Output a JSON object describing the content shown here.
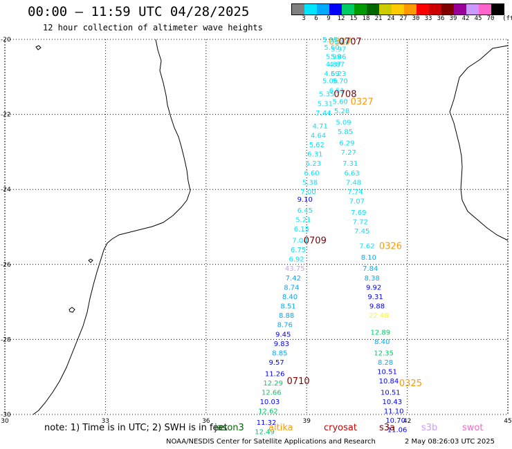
{
  "header": {
    "title": "00:00 – 11:59 UTC 04/28/2025",
    "subtitle": "12 hour collection of altimeter wave heights"
  },
  "colorbar": {
    "unit": "(ft)",
    "colors": [
      "#808080",
      "#00e5ff",
      "#00aaff",
      "#0000ff",
      "#00cc66",
      "#009900",
      "#006600",
      "#cccc00",
      "#ffcc00",
      "#ff9900",
      "#ff0000",
      "#cc0000",
      "#800000",
      "#990099",
      "#cc99ff",
      "#ff66cc",
      "#000000"
    ],
    "labels": [
      "3",
      "6",
      "9",
      "12",
      "15",
      "18",
      "21",
      "24",
      "27",
      "30",
      "33",
      "36",
      "39",
      "42",
      "45",
      "70"
    ]
  },
  "axes": {
    "lon_ticks": [
      "30",
      "33",
      "36",
      "39",
      "42",
      "45"
    ],
    "lat_ticks": [
      "-20",
      "-22",
      "-24",
      "-26",
      "-28",
      "-30"
    ]
  },
  "observations": [
    {
      "v": "5.95",
      "lon": 39.7,
      "lat": -20.0,
      "c": "#00e5ff"
    },
    {
      "v": "5.84",
      "lon": 40.05,
      "lat": -20.05,
      "c": "#00e5ff"
    },
    {
      "v": "5.60",
      "lon": 39.75,
      "lat": -20.2,
      "c": "#00e5ff"
    },
    {
      "v": "5.97",
      "lon": 39.95,
      "lat": -20.25,
      "c": "#00e5ff"
    },
    {
      "v": "5.99",
      "lon": 39.8,
      "lat": -20.45,
      "c": "#00e5ff"
    },
    {
      "v": "5.86",
      "lon": 39.95,
      "lat": -20.45,
      "c": "#00e5ff"
    },
    {
      "v": "4.87",
      "lon": 39.8,
      "lat": -20.65,
      "c": "#00e5ff"
    },
    {
      "v": "4.87",
      "lon": 39.9,
      "lat": -20.65,
      "c": "#00e5ff"
    },
    {
      "v": "4.69",
      "lon": 39.75,
      "lat": -20.9,
      "c": "#00e5ff"
    },
    {
      "v": "5.23",
      "lon": 39.95,
      "lat": -20.9,
      "c": "#00e5ff"
    },
    {
      "v": "5.06",
      "lon": 39.7,
      "lat": -21.1,
      "c": "#00e5ff"
    },
    {
      "v": "5.70",
      "lon": 40.0,
      "lat": -21.1,
      "c": "#00e5ff"
    },
    {
      "v": "6.51",
      "lon": 39.9,
      "lat": -21.35,
      "c": "#00e5ff"
    },
    {
      "v": "5.35",
      "lon": 39.6,
      "lat": -21.45,
      "c": "#00e5ff"
    },
    {
      "v": "5.31",
      "lon": 39.55,
      "lat": -21.7,
      "c": "#00e5ff"
    },
    {
      "v": "5.60",
      "lon": 40.0,
      "lat": -21.65,
      "c": "#00e5ff"
    },
    {
      "v": "7.44",
      "lon": 39.5,
      "lat": -21.95,
      "c": "#00e5ff"
    },
    {
      "v": "5.28",
      "lon": 40.05,
      "lat": -21.9,
      "c": "#00e5ff"
    },
    {
      "v": "4.71",
      "lon": 39.4,
      "lat": -22.3,
      "c": "#00e5ff"
    },
    {
      "v": "5.09",
      "lon": 40.1,
      "lat": -22.2,
      "c": "#00e5ff"
    },
    {
      "v": "4.64",
      "lon": 39.35,
      "lat": -22.55,
      "c": "#00e5ff"
    },
    {
      "v": "5.85",
      "lon": 40.15,
      "lat": -22.45,
      "c": "#00e5ff"
    },
    {
      "v": "5.62",
      "lon": 39.3,
      "lat": -22.8,
      "c": "#00e5ff"
    },
    {
      "v": "6.29",
      "lon": 40.2,
      "lat": -22.75,
      "c": "#00e5ff"
    },
    {
      "v": "6.31",
      "lon": 39.25,
      "lat": -23.05,
      "c": "#00e5ff"
    },
    {
      "v": "7.27",
      "lon": 40.25,
      "lat": -23.0,
      "c": "#00e5ff"
    },
    {
      "v": "5.23",
      "lon": 39.2,
      "lat": -23.3,
      "c": "#00e5ff"
    },
    {
      "v": "7.31",
      "lon": 40.3,
      "lat": -23.3,
      "c": "#00e5ff"
    },
    {
      "v": "6.60",
      "lon": 39.15,
      "lat": -23.55,
      "c": "#00e5ff"
    },
    {
      "v": "6.63",
      "lon": 40.35,
      "lat": -23.55,
      "c": "#00e5ff"
    },
    {
      "v": "5.38",
      "lon": 39.1,
      "lat": -23.8,
      "c": "#00e5ff"
    },
    {
      "v": "7.48",
      "lon": 40.4,
      "lat": -23.8,
      "c": "#00e5ff"
    },
    {
      "v": "7.00",
      "lon": 39.05,
      "lat": -24.05,
      "c": "#00e5ff"
    },
    {
      "v": "7.74",
      "lon": 40.45,
      "lat": -24.05,
      "c": "#00e5ff"
    },
    {
      "v": "9.10",
      "lon": 38.95,
      "lat": -24.25,
      "c": "#0000ff"
    },
    {
      "v": "7.07",
      "lon": 40.5,
      "lat": -24.3,
      "c": "#00e5ff"
    },
    {
      "v": "6.45",
      "lon": 38.95,
      "lat": -24.55,
      "c": "#00e5ff"
    },
    {
      "v": "7.69",
      "lon": 40.55,
      "lat": -24.6,
      "c": "#00e5ff"
    },
    {
      "v": "5.21",
      "lon": 38.9,
      "lat": -24.8,
      "c": "#00e5ff"
    },
    {
      "v": "7.72",
      "lon": 40.6,
      "lat": -24.85,
      "c": "#00e5ff"
    },
    {
      "v": "6.15",
      "lon": 38.85,
      "lat": -25.05,
      "c": "#00e5ff"
    },
    {
      "v": "7.45",
      "lon": 40.65,
      "lat": -25.1,
      "c": "#00e5ff"
    },
    {
      "v": "7.04",
      "lon": 38.8,
      "lat": -25.35,
      "c": "#00e5ff"
    },
    {
      "v": "7.62",
      "lon": 40.8,
      "lat": -25.5,
      "c": "#00e5ff"
    },
    {
      "v": "6.75",
      "lon": 38.75,
      "lat": -25.6,
      "c": "#00e5ff"
    },
    {
      "v": "6.92",
      "lon": 38.7,
      "lat": -25.85,
      "c": "#00e5ff"
    },
    {
      "v": "8.10",
      "lon": 40.85,
      "lat": -25.8,
      "c": "#00aaff"
    },
    {
      "v": "43.75",
      "lon": 38.65,
      "lat": -26.1,
      "c": "#cc99ff"
    },
    {
      "v": "7.84",
      "lon": 40.9,
      "lat": -26.1,
      "c": "#00aaff"
    },
    {
      "v": "7.42",
      "lon": 38.6,
      "lat": -26.35,
      "c": "#00aaff"
    },
    {
      "v": "8.38",
      "lon": 40.95,
      "lat": -26.35,
      "c": "#00aaff"
    },
    {
      "v": "8.74",
      "lon": 38.55,
      "lat": -26.6,
      "c": "#00aaff"
    },
    {
      "v": "9.92",
      "lon": 41.0,
      "lat": -26.6,
      "c": "#0000ff"
    },
    {
      "v": "8.40",
      "lon": 38.5,
      "lat": -26.85,
      "c": "#00aaff"
    },
    {
      "v": "9.31",
      "lon": 41.05,
      "lat": -26.85,
      "c": "#0000ff"
    },
    {
      "v": "8.51",
      "lon": 38.45,
      "lat": -27.1,
      "c": "#00aaff"
    },
    {
      "v": "9.88",
      "lon": 41.1,
      "lat": -27.1,
      "c": "#0000ff"
    },
    {
      "v": "8.88",
      "lon": 38.4,
      "lat": -27.35,
      "c": "#00aaff"
    },
    {
      "v": "22.48",
      "lon": 41.15,
      "lat": -27.35,
      "c": "#ffff00"
    },
    {
      "v": "8.76",
      "lon": 38.35,
      "lat": -27.6,
      "c": "#00aaff"
    },
    {
      "v": "9.45",
      "lon": 38.3,
      "lat": -27.85,
      "c": "#0000ff"
    },
    {
      "v": "12.89",
      "lon": 41.2,
      "lat": -27.8,
      "c": "#00cc66"
    },
    {
      "v": "9.83",
      "lon": 38.25,
      "lat": -28.1,
      "c": "#0000ff"
    },
    {
      "v": "8.40",
      "lon": 41.25,
      "lat": -28.05,
      "c": "#00aaff"
    },
    {
      "v": "8.85",
      "lon": 38.2,
      "lat": -28.35,
      "c": "#00aaff"
    },
    {
      "v": "12.35",
      "lon": 41.3,
      "lat": -28.35,
      "c": "#00cc66"
    },
    {
      "v": "9.57",
      "lon": 38.1,
      "lat": -28.6,
      "c": "#0000ff"
    },
    {
      "v": "8.28",
      "lon": 41.35,
      "lat": -28.6,
      "c": "#00aaff"
    },
    {
      "v": "11.26",
      "lon": 38.05,
      "lat": -28.9,
      "c": "#0000ff"
    },
    {
      "v": "10.51",
      "lon": 41.4,
      "lat": -28.85,
      "c": "#0000ff"
    },
    {
      "v": "12.29",
      "lon": 38.0,
      "lat": -29.15,
      "c": "#00cc66"
    },
    {
      "v": "10.84",
      "lon": 41.45,
      "lat": -29.1,
      "c": "#0000ff"
    },
    {
      "v": "12.66",
      "lon": 37.95,
      "lat": -29.4,
      "c": "#00cc66"
    },
    {
      "v": "10.51",
      "lon": 41.5,
      "lat": -29.4,
      "c": "#0000ff"
    },
    {
      "v": "10.03",
      "lon": 37.9,
      "lat": -29.65,
      "c": "#0000ff"
    },
    {
      "v": "10.43",
      "lon": 41.55,
      "lat": -29.65,
      "c": "#0000ff"
    },
    {
      "v": "12.62",
      "lon": 37.85,
      "lat": -29.9,
      "c": "#00cc66"
    },
    {
      "v": "11.10",
      "lon": 41.6,
      "lat": -29.9,
      "c": "#0000ff"
    },
    {
      "v": "11.32",
      "lon": 37.8,
      "lat": -30.2,
      "c": "#0000ff"
    },
    {
      "v": "10.70",
      "lon": 41.65,
      "lat": -30.15,
      "c": "#0000ff"
    },
    {
      "v": "12.49",
      "lon": 37.75,
      "lat": -30.45,
      "c": "#00cc66"
    },
    {
      "v": "11.06",
      "lon": 41.7,
      "lat": -30.4,
      "c": "#0000ff"
    }
  ],
  "pass_labels": [
    {
      "t": "0327",
      "lon": 40.0,
      "lat": -20.05,
      "c": "#ff9900"
    },
    {
      "t": "0707",
      "lon": 40.3,
      "lat": -20.05,
      "c": "#800000"
    },
    {
      "t": "0708",
      "lon": 40.15,
      "lat": -21.45,
      "c": "#800000"
    },
    {
      "t": "0327",
      "lon": 40.65,
      "lat": -21.65,
      "c": "#ff9900"
    },
    {
      "t": "0709",
      "lon": 39.25,
      "lat": -25.35,
      "c": "#800000"
    },
    {
      "t": "0326",
      "lon": 41.5,
      "lat": -25.5,
      "c": "#ff9900"
    },
    {
      "t": "0710",
      "lon": 38.75,
      "lat": -29.1,
      "c": "#800000"
    },
    {
      "t": "0325",
      "lon": 42.1,
      "lat": -29.15,
      "c": "#ff9900"
    }
  ],
  "footer": {
    "note": "note: 1) Time is in UTC; 2) SWH is in feet",
    "legend": [
      {
        "label": "jason3",
        "c": "#006600"
      },
      {
        "label": "altika",
        "c": "#ff9900"
      },
      {
        "label": "cryosat",
        "c": "#cc0000"
      },
      {
        "label": "s3a",
        "c": "#800000"
      },
      {
        "label": "s3b",
        "c": "#cc99ff"
      },
      {
        "label": "swot",
        "c": "#ff66cc"
      }
    ],
    "credit": "NOAA/NESDIS Center for Satellite Applications and Research",
    "stamp": "2 May 08:26:03 UTC 2025"
  }
}
